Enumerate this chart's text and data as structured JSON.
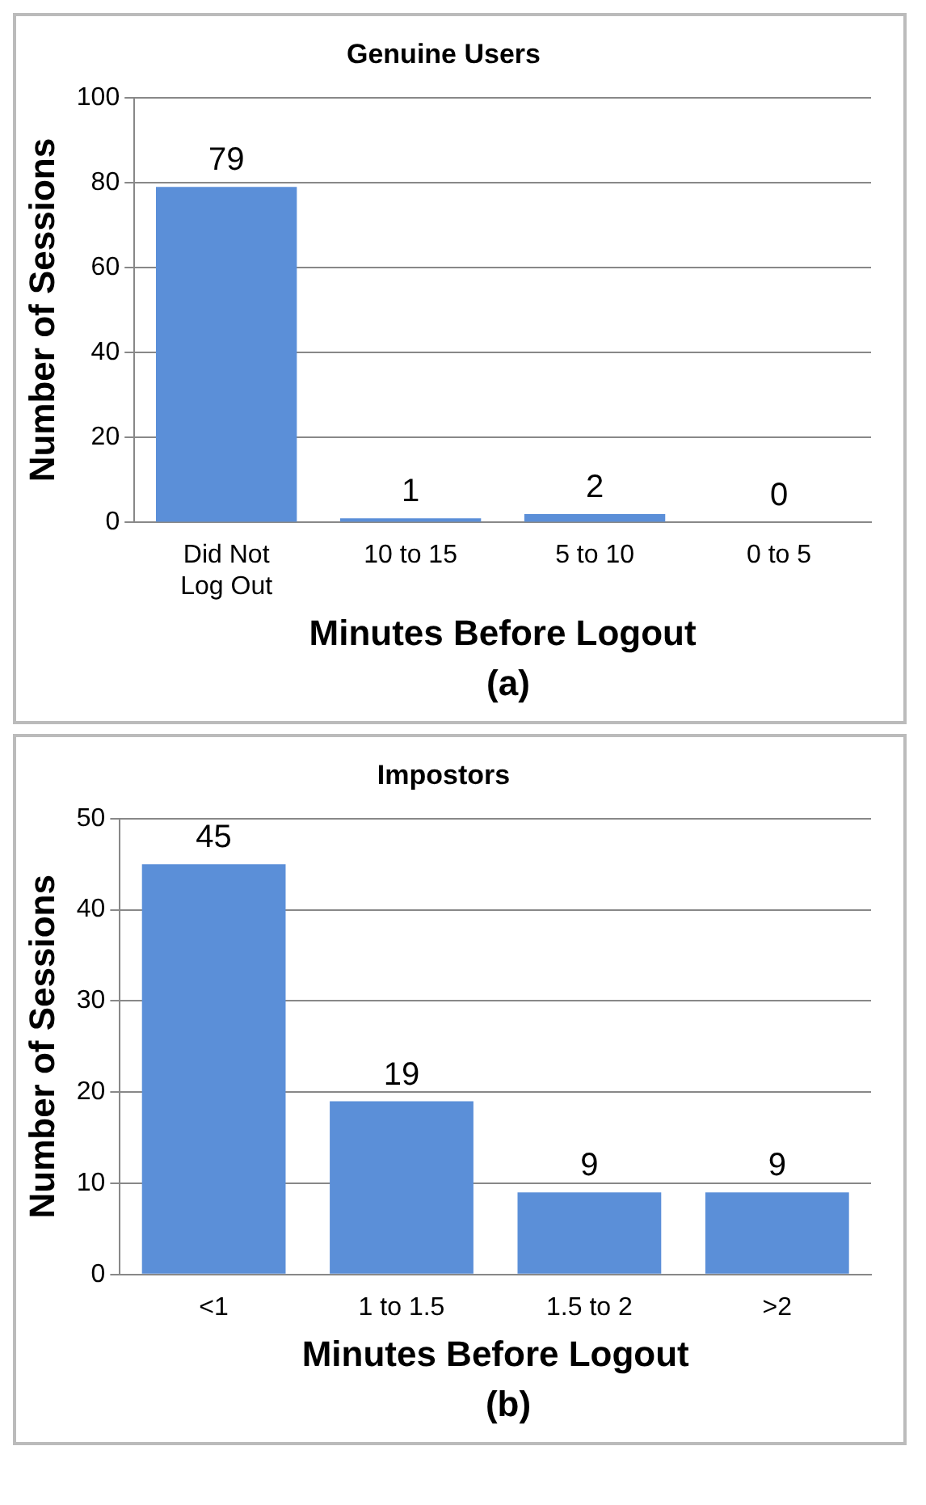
{
  "chart_data": [
    {
      "type": "bar",
      "title": "Genuine Users",
      "xlabel": "Minutes Before Logout",
      "ylabel": "Number of Sessions",
      "categories": [
        "Did Not Log Out",
        "10 to 15",
        "5 to 10",
        "0 to 5"
      ],
      "values": [
        79,
        1,
        2,
        0
      ],
      "color": "#5b8fd8",
      "ylim": [
        0,
        100
      ],
      "yticks": [
        0,
        20,
        40,
        60,
        80,
        100
      ],
      "grid": "y",
      "legend": false,
      "data_labels": true,
      "annotations": [
        "(a)"
      ]
    },
    {
      "type": "bar",
      "title": "Impostors",
      "xlabel": "Minutes Before Logout",
      "ylabel": "Number of Sessions",
      "categories": [
        "<1",
        "1 to 1.5",
        "1.5 to 2",
        ">2"
      ],
      "values": [
        45,
        19,
        9,
        9
      ],
      "color": "#5b8fd8",
      "ylim": [
        0,
        50
      ],
      "yticks": [
        0,
        10,
        20,
        30,
        40,
        50
      ],
      "grid": "y",
      "legend": false,
      "data_labels": true,
      "annotations": [
        "(b)"
      ]
    }
  ]
}
